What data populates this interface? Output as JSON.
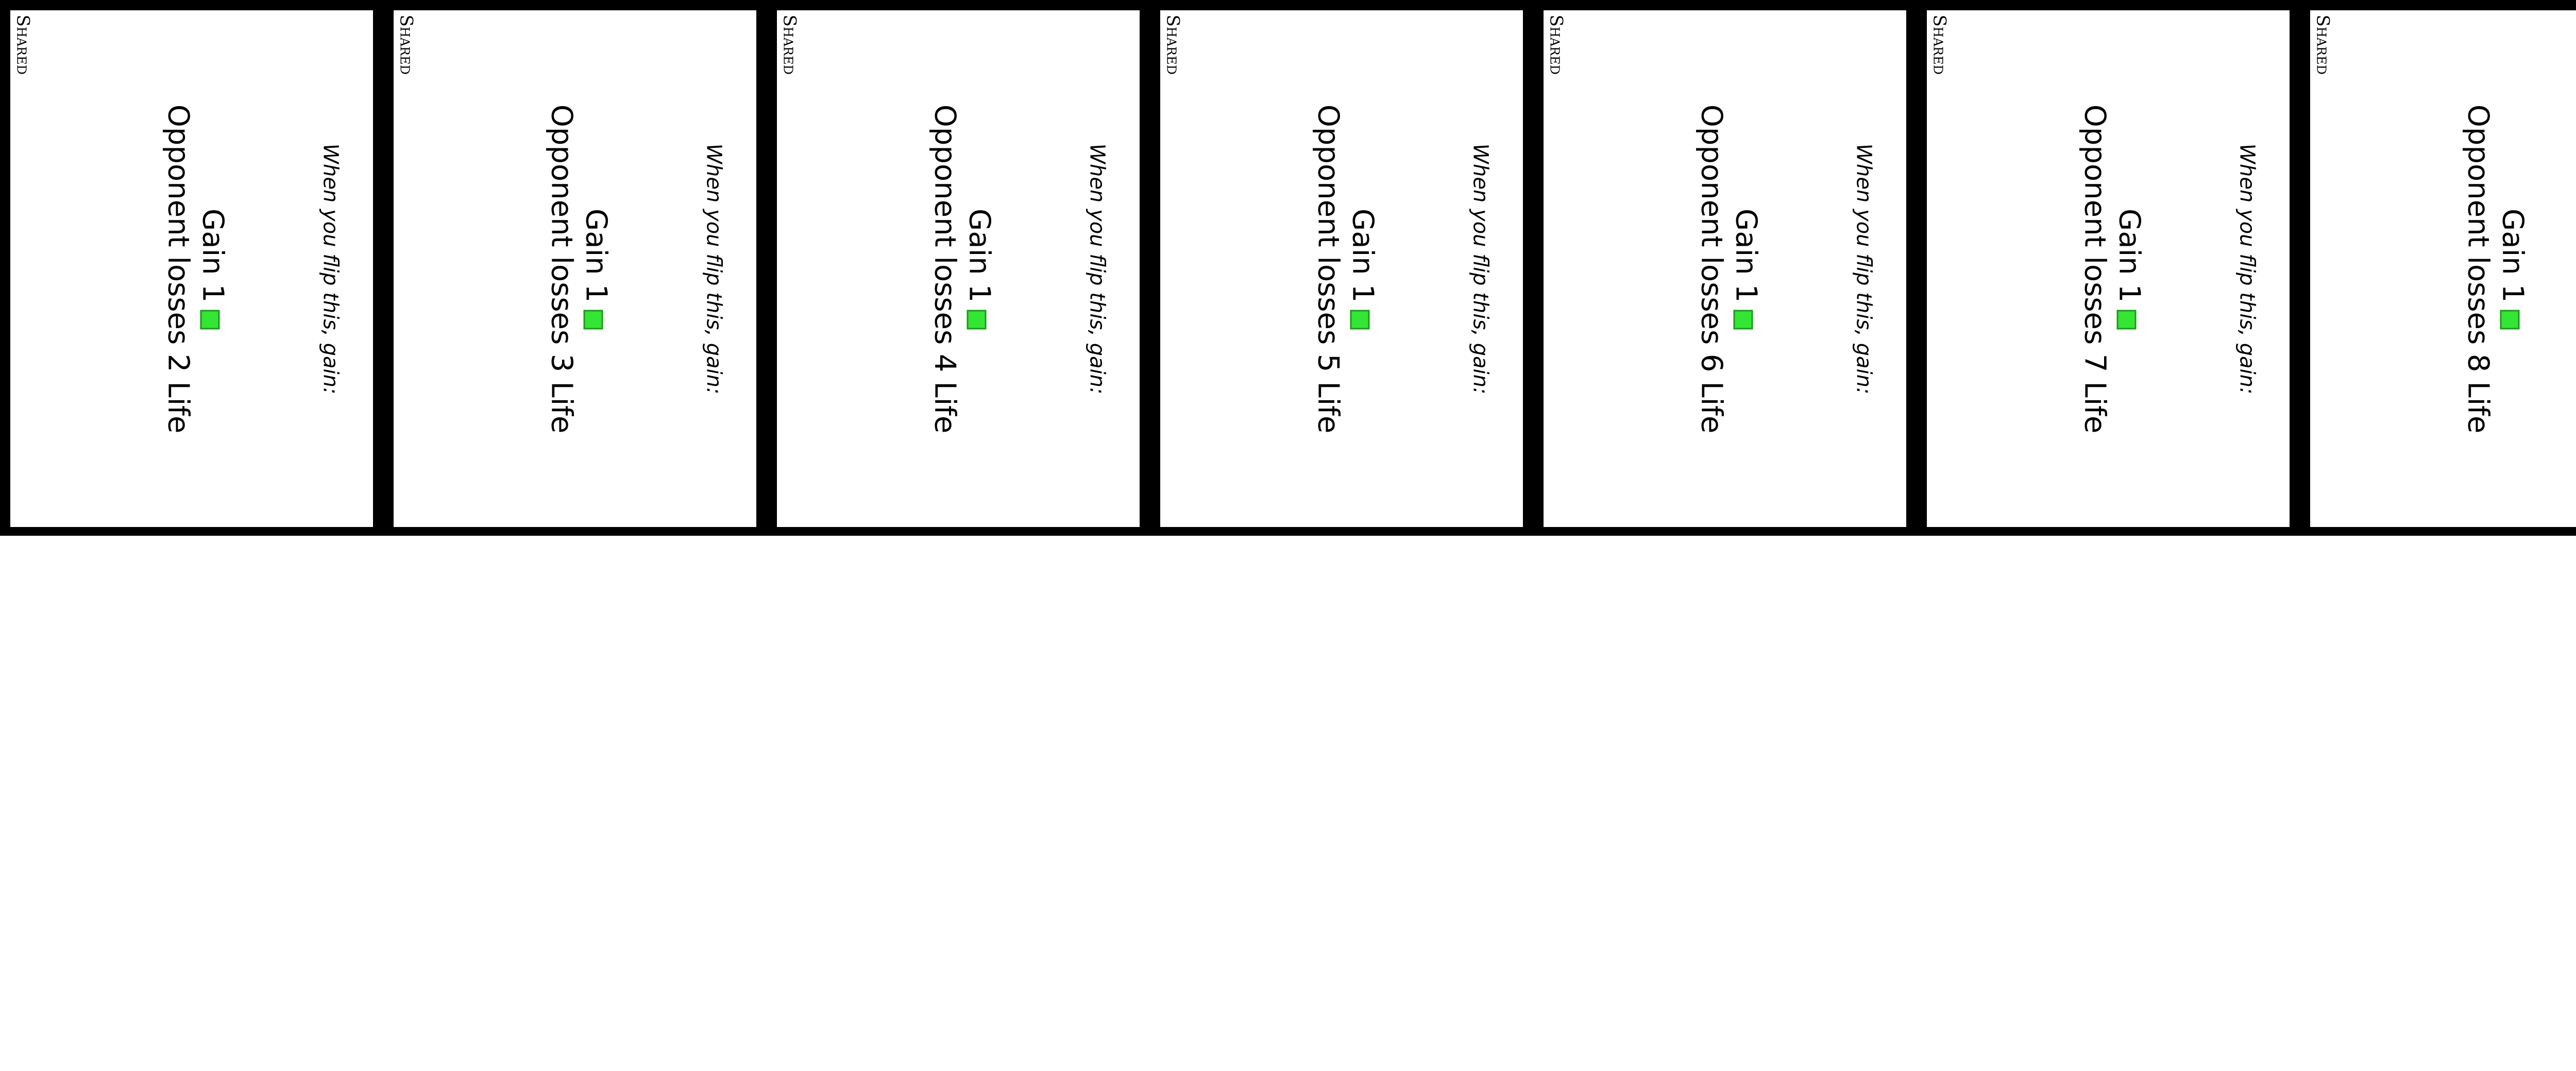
{
  "cards": [
    {
      "tag": "Shared",
      "trigger": "When you flip this, gain:",
      "gain": "Gain 1",
      "effect": "Opponent losses 2 Life"
    },
    {
      "tag": "Shared",
      "trigger": "When you flip this, gain:",
      "gain": "Gain 1",
      "effect": "Opponent losses 3 Life"
    },
    {
      "tag": "Shared",
      "trigger": "When you flip this, gain:",
      "gain": "Gain 1",
      "effect": "Opponent losses 4 Life"
    },
    {
      "tag": "Shared",
      "trigger": "When you flip this, gain:",
      "gain": "Gain 1",
      "effect": "Opponent losses 5 Life"
    },
    {
      "tag": "Shared",
      "trigger": "When you flip this, gain:",
      "gain": "Gain 1",
      "effect": "Opponent losses 6 Life"
    },
    {
      "tag": "Shared",
      "trigger": "When you flip this, gain:",
      "gain": "Gain 1",
      "effect": "Opponent losses 7 Life"
    },
    {
      "tag": "Shared",
      "trigger": "When you flip this, gain:",
      "gain": "Gain 1",
      "effect": "Opponent losses 8 Life"
    }
  ]
}
